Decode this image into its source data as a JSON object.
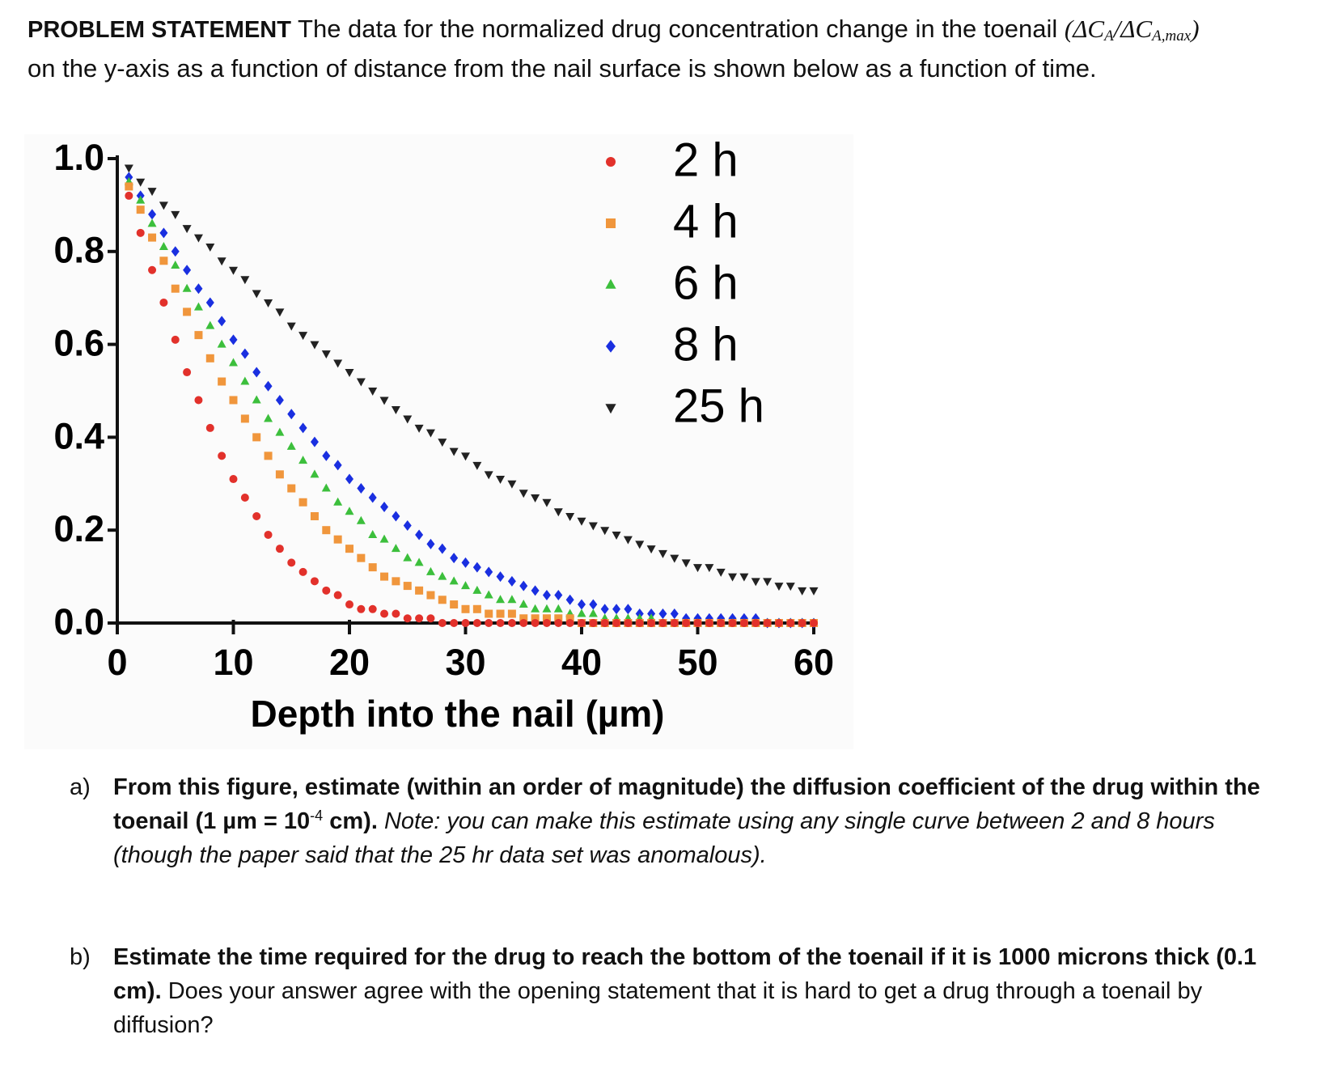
{
  "problem": {
    "label": "PROBLEM STATEMENT",
    "text_1": "The data for the normalized drug concentration change in the toenail",
    "formula": {
      "open": "(ΔC",
      "sub_1": "A",
      "slash": "/ΔC",
      "sub_2": "A,max",
      "close": ")"
    },
    "text_2": "on the y-axis as a function of distance from the nail surface is shown below as a function of time."
  },
  "chart_data": {
    "type": "scatter",
    "xlabel": "Depth into the nail (µm)",
    "x": [
      1,
      2,
      3,
      4,
      5,
      6,
      7,
      8,
      9,
      10,
      11,
      12,
      13,
      14,
      15,
      16,
      17,
      18,
      19,
      20,
      21,
      22,
      23,
      24,
      25,
      26,
      27,
      28,
      29,
      30,
      31,
      32,
      33,
      34,
      35,
      36,
      37,
      38,
      39,
      40,
      41,
      42,
      43,
      44,
      45,
      46,
      47,
      48,
      49,
      50,
      51,
      52,
      53,
      54,
      55,
      56,
      57,
      58,
      59,
      60
    ],
    "series": [
      {
        "name": "2 h",
        "color": "#e2312b",
        "marker": "circle",
        "values": [
          0.92,
          0.84,
          0.76,
          0.69,
          0.61,
          0.54,
          0.48,
          0.42,
          0.36,
          0.31,
          0.27,
          0.23,
          0.19,
          0.16,
          0.13,
          0.11,
          0.09,
          0.07,
          0.06,
          0.04,
          0.03,
          0.03,
          0.02,
          0.02,
          0.01,
          0.01,
          0.01,
          0,
          0,
          0,
          0,
          0,
          0,
          0,
          0,
          0,
          0,
          0,
          0,
          0,
          0,
          0,
          0,
          0,
          0,
          0,
          0,
          0,
          0,
          0,
          0,
          0,
          0,
          0,
          0,
          0,
          0,
          0,
          0,
          0
        ]
      },
      {
        "name": "4 h",
        "color": "#f0963c",
        "marker": "square",
        "values": [
          0.94,
          0.89,
          0.83,
          0.78,
          0.72,
          0.67,
          0.62,
          0.57,
          0.52,
          0.48,
          0.44,
          0.4,
          0.36,
          0.32,
          0.29,
          0.26,
          0.23,
          0.2,
          0.18,
          0.16,
          0.14,
          0.12,
          0.1,
          0.09,
          0.08,
          0.07,
          0.06,
          0.05,
          0.04,
          0.03,
          0.03,
          0.02,
          0.02,
          0.02,
          0.01,
          0.01,
          0.01,
          0.01,
          0.01,
          0,
          0,
          0,
          0,
          0,
          0,
          0,
          0,
          0,
          0,
          0,
          0,
          0,
          0,
          0,
          0,
          0,
          0,
          0,
          0,
          0
        ]
      },
      {
        "name": "6 h",
        "color": "#3cbf3c",
        "marker": "triangle-up",
        "values": [
          0.95,
          0.91,
          0.86,
          0.81,
          0.77,
          0.72,
          0.68,
          0.64,
          0.6,
          0.56,
          0.52,
          0.48,
          0.44,
          0.41,
          0.38,
          0.35,
          0.32,
          0.29,
          0.26,
          0.24,
          0.22,
          0.19,
          0.18,
          0.16,
          0.14,
          0.13,
          0.11,
          0.1,
          0.09,
          0.08,
          0.07,
          0.06,
          0.05,
          0.05,
          0.04,
          0.03,
          0.03,
          0.03,
          0.02,
          0.02,
          0.02,
          0.01,
          0.01,
          0.01,
          0.01,
          0.01,
          0,
          0,
          0,
          0,
          0,
          0,
          0,
          0,
          0,
          0,
          0,
          0,
          0,
          0
        ]
      },
      {
        "name": "8 h",
        "color": "#1a2fe0",
        "marker": "diamond",
        "values": [
          0.96,
          0.92,
          0.88,
          0.84,
          0.8,
          0.76,
          0.72,
          0.69,
          0.65,
          0.61,
          0.58,
          0.54,
          0.51,
          0.48,
          0.45,
          0.42,
          0.39,
          0.36,
          0.34,
          0.31,
          0.29,
          0.27,
          0.25,
          0.23,
          0.21,
          0.19,
          0.17,
          0.16,
          0.14,
          0.13,
          0.12,
          0.11,
          0.1,
          0.09,
          0.08,
          0.07,
          0.06,
          0.06,
          0.05,
          0.04,
          0.04,
          0.03,
          0.03,
          0.03,
          0.02,
          0.02,
          0.02,
          0.02,
          0.01,
          0.01,
          0.01,
          0.01,
          0.01,
          0.01,
          0.01,
          0,
          0,
          0,
          0,
          0
        ]
      },
      {
        "name": "25 h",
        "color": "#222222",
        "marker": "triangle-down",
        "values": [
          0.98,
          0.95,
          0.93,
          0.9,
          0.88,
          0.85,
          0.83,
          0.81,
          0.78,
          0.76,
          0.74,
          0.71,
          0.69,
          0.67,
          0.64,
          0.62,
          0.6,
          0.58,
          0.56,
          0.54,
          0.52,
          0.5,
          0.48,
          0.46,
          0.44,
          0.42,
          0.41,
          0.39,
          0.37,
          0.36,
          0.34,
          0.32,
          0.31,
          0.3,
          0.28,
          0.27,
          0.26,
          0.24,
          0.23,
          0.22,
          0.21,
          0.2,
          0.19,
          0.18,
          0.17,
          0.16,
          0.15,
          0.14,
          0.13,
          0.12,
          0.12,
          0.11,
          0.1,
          0.1,
          0.09,
          0.09,
          0.08,
          0.08,
          0.07,
          0.07
        ]
      }
    ],
    "xlim": [
      0,
      60
    ],
    "xticks": [
      0,
      10,
      20,
      30,
      40,
      50,
      60
    ],
    "ylim": [
      0,
      1
    ],
    "yticks": [
      {
        "value": 0,
        "label": "0.0"
      },
      0.2,
      0.4,
      0.6,
      0.8,
      {
        "value": 1,
        "label": "1.0"
      }
    ]
  },
  "questions": [
    {
      "label": "a)",
      "bold_1": "From this figure, estimate (within an order of magnitude) the diffusion coefficient of the drug within the toenail (1 µm = 10",
      "sup": "-4",
      "bold_2": "cm).",
      "italic": "Note: you can make this estimate using any single curve between 2 and 8 hours (though the paper said that the 25 hr data set was anomalous)."
    },
    {
      "label": "b)",
      "bold_1": "Estimate the time required for the drug to reach the bottom of the toenail if it is 1000 microns thick (0.1 cm).",
      "text": "Does your answer agree with the opening statement that it is hard to get a drug through a toenail by diffusion?"
    }
  ]
}
